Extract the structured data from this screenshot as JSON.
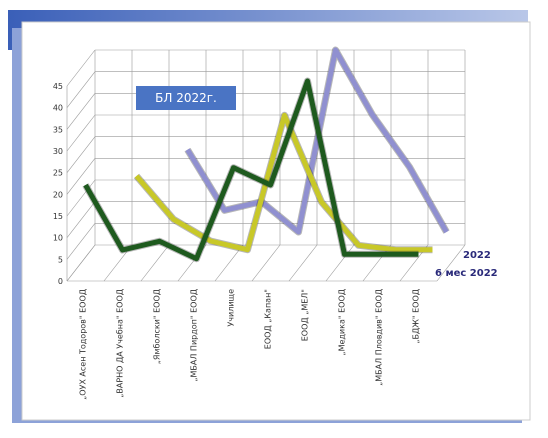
{
  "chart_data": {
    "type": "line3d",
    "title": "БЛ 2022г.",
    "categories": [
      "„ОУХ Асен Тодоров\" ЕООД",
      "„ВАРНО ДА Учебна\" ЕООД",
      "„Ямболски\" ЕООД",
      "„МБАЛ Пирдоп\" ЕООД",
      "Училище",
      "ЕООД „Капан\"",
      "ЕООД „МЕЛ\"",
      "„Медика\" ЕООД",
      "„МБАЛ Пловдив\" ЕООД",
      "„БДЖ\" ЕООД"
    ],
    "series": [
      {
        "name": "2022",
        "color": "#9090d0",
        "values": [
          null,
          null,
          22,
          8,
          10,
          3,
          45,
          30,
          18,
          3
        ]
      },
      {
        "color": "#c8c828",
        "values": [
          null,
          18,
          8,
          3,
          1,
          32,
          12,
          2,
          1,
          1
        ]
      },
      {
        "name": "6 мес 2022",
        "color": "#1e5a1e",
        "values": [
          18,
          3,
          5,
          1,
          22,
          18,
          42,
          2,
          2,
          2
        ]
      }
    ],
    "ylim": [
      0,
      45
    ],
    "yticks": [
      0,
      5,
      10,
      15,
      20,
      25,
      30,
      35,
      40,
      45
    ],
    "grid": true
  }
}
